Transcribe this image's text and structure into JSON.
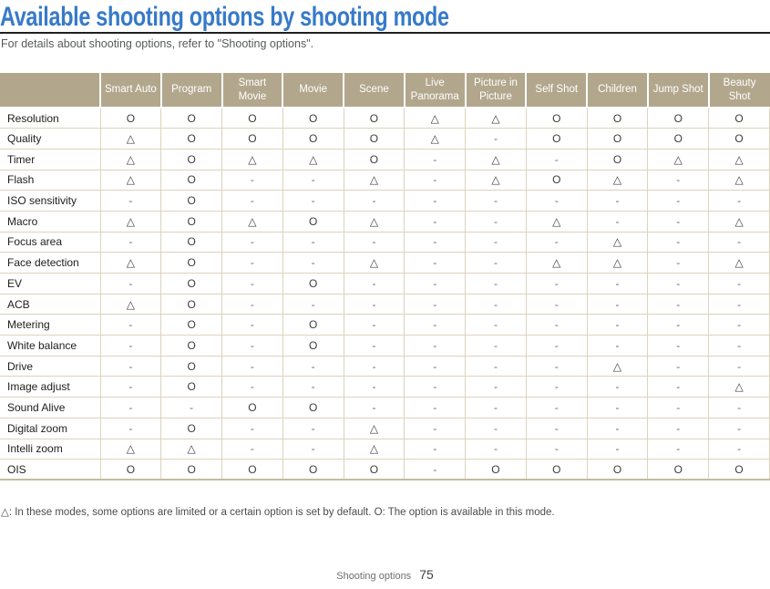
{
  "page": {
    "title": "Available shooting options by shooting mode",
    "subtitle": "For details about shooting options, refer to \"Shooting options\".",
    "footnote": "△: In these modes, some options are limited or a certain option is set by default. O: The option is available in this mode.",
    "footer": {
      "section": "Shooting options",
      "page_number": "75"
    }
  },
  "colors": {
    "title_blue": "#377ac8",
    "header_tan": "#b2a78c",
    "border_tan": "#ddd3bd",
    "table_bottom_border": "#c6ba9f",
    "body_text": "#1d1d1b",
    "muted_text": "#58595b"
  },
  "legend": {
    "available": "O",
    "limited": "△",
    "unavailable": "-"
  },
  "table": {
    "columns": [
      "",
      "Smart Auto",
      "Program",
      "Smart Movie",
      "Movie",
      "Scene",
      "Live Panorama",
      "Picture in Picture",
      "Self Shot",
      "Children",
      "Jump Shot",
      "Beauty Shot"
    ],
    "rows": [
      {
        "label": "Resolution",
        "values": [
          "O",
          "O",
          "O",
          "O",
          "O",
          "△",
          "△",
          "O",
          "O",
          "O",
          "O"
        ]
      },
      {
        "label": "Quality",
        "values": [
          "△",
          "O",
          "O",
          "O",
          "O",
          "△",
          "-",
          "O",
          "O",
          "O",
          "O"
        ]
      },
      {
        "label": "Timer",
        "values": [
          "△",
          "O",
          "△",
          "△",
          "O",
          "-",
          "△",
          "-",
          "O",
          "△",
          "△"
        ]
      },
      {
        "label": "Flash",
        "values": [
          "△",
          "O",
          "-",
          "-",
          "△",
          "-",
          "△",
          "O",
          "△",
          "-",
          "△"
        ]
      },
      {
        "label": "ISO sensitivity",
        "values": [
          "-",
          "O",
          "-",
          "-",
          "-",
          "-",
          "-",
          "-",
          "-",
          "-",
          "-"
        ]
      },
      {
        "label": "Macro",
        "values": [
          "△",
          "O",
          "△",
          "O",
          "△",
          "-",
          "-",
          "△",
          "-",
          "-",
          "△"
        ]
      },
      {
        "label": "Focus area",
        "values": [
          "-",
          "O",
          "-",
          "-",
          "-",
          "-",
          "-",
          "-",
          "△",
          "-",
          "-"
        ]
      },
      {
        "label": "Face detection",
        "values": [
          "△",
          "O",
          "-",
          "-",
          "△",
          "-",
          "-",
          "△",
          "△",
          "-",
          "△"
        ]
      },
      {
        "label": "EV",
        "values": [
          "-",
          "O",
          "-",
          "O",
          "-",
          "-",
          "-",
          "-",
          "-",
          "-",
          "-"
        ]
      },
      {
        "label": "ACB",
        "values": [
          "△",
          "O",
          "-",
          "-",
          "-",
          "-",
          "-",
          "-",
          "-",
          "-",
          "-"
        ]
      },
      {
        "label": "Metering",
        "values": [
          "-",
          "O",
          "-",
          "O",
          "-",
          "-",
          "-",
          "-",
          "-",
          "-",
          "-"
        ]
      },
      {
        "label": "White balance",
        "values": [
          "-",
          "O",
          "-",
          "O",
          "-",
          "-",
          "-",
          "-",
          "-",
          "-",
          "-"
        ]
      },
      {
        "label": "Drive",
        "values": [
          "-",
          "O",
          "-",
          "-",
          "-",
          "-",
          "-",
          "-",
          "△",
          "-",
          "-"
        ]
      },
      {
        "label": "Image adjust",
        "values": [
          "-",
          "O",
          "-",
          "-",
          "-",
          "-",
          "-",
          "-",
          "-",
          "-",
          "△"
        ]
      },
      {
        "label": "Sound Alive",
        "values": [
          "-",
          "-",
          "O",
          "O",
          "-",
          "-",
          "-",
          "-",
          "-",
          "-",
          "-"
        ]
      },
      {
        "label": "Digital zoom",
        "values": [
          "-",
          "O",
          "-",
          "-",
          "△",
          "-",
          "-",
          "-",
          "-",
          "-",
          "-"
        ]
      },
      {
        "label": "Intelli zoom",
        "values": [
          "△",
          "△",
          "-",
          "-",
          "△",
          "-",
          "-",
          "-",
          "-",
          "-",
          "-"
        ]
      },
      {
        "label": "OIS",
        "values": [
          "O",
          "O",
          "O",
          "O",
          "O",
          "-",
          "O",
          "O",
          "O",
          "O",
          "O"
        ]
      }
    ]
  }
}
